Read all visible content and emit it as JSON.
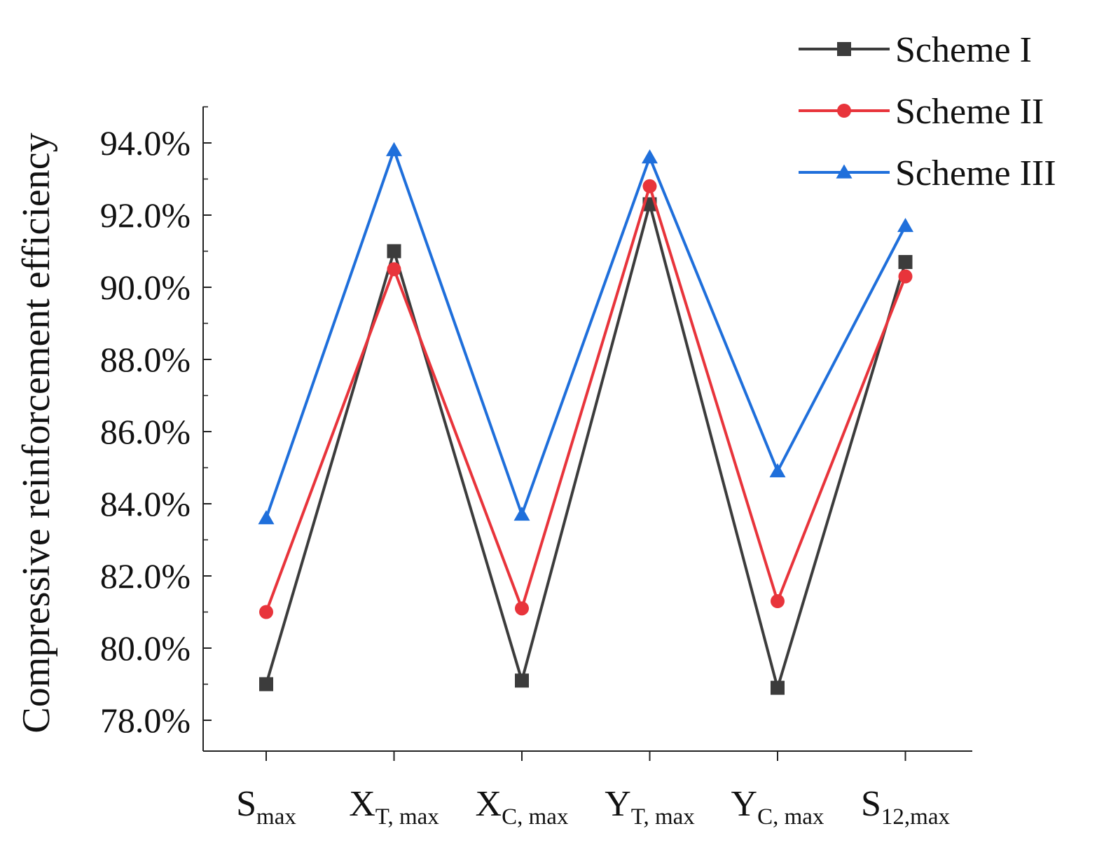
{
  "chart_data": {
    "type": "line",
    "title": "",
    "xlabel": "",
    "ylabel": "Compressive reinforcement efficiency",
    "ylim": [
      77.0,
      95.0
    ],
    "ytick_values": [
      78,
      80,
      82,
      84,
      86,
      88,
      90,
      92,
      94
    ],
    "ytick_labels": [
      "78.0%",
      "80.0%",
      "82.0%",
      "84.0%",
      "86.0%",
      "88.0%",
      "90.0%",
      "92.0%",
      "94.0%"
    ],
    "categories": [
      {
        "base": "S",
        "sub": "max"
      },
      {
        "base": "X",
        "sub": "T, max"
      },
      {
        "base": "X",
        "sub": "C, max"
      },
      {
        "base": "Y",
        "sub": "T, max"
      },
      {
        "base": "Y",
        "sub": "C, max"
      },
      {
        "base": "S",
        "sub": "12,max"
      }
    ],
    "legend_position": "top-right",
    "grid": false,
    "series": [
      {
        "name": "Scheme I",
        "color": "#3c3c3c",
        "marker": "square",
        "values": [
          79.0,
          91.0,
          79.1,
          92.3,
          78.9,
          90.7
        ]
      },
      {
        "name": "Scheme II",
        "color": "#e8343b",
        "marker": "circle",
        "values": [
          81.0,
          90.5,
          81.1,
          92.8,
          81.3,
          90.3
        ]
      },
      {
        "name": "Scheme III",
        "color": "#1f6fdb",
        "marker": "triangle",
        "values": [
          83.6,
          93.8,
          83.7,
          93.6,
          84.9,
          91.7
        ]
      }
    ]
  }
}
